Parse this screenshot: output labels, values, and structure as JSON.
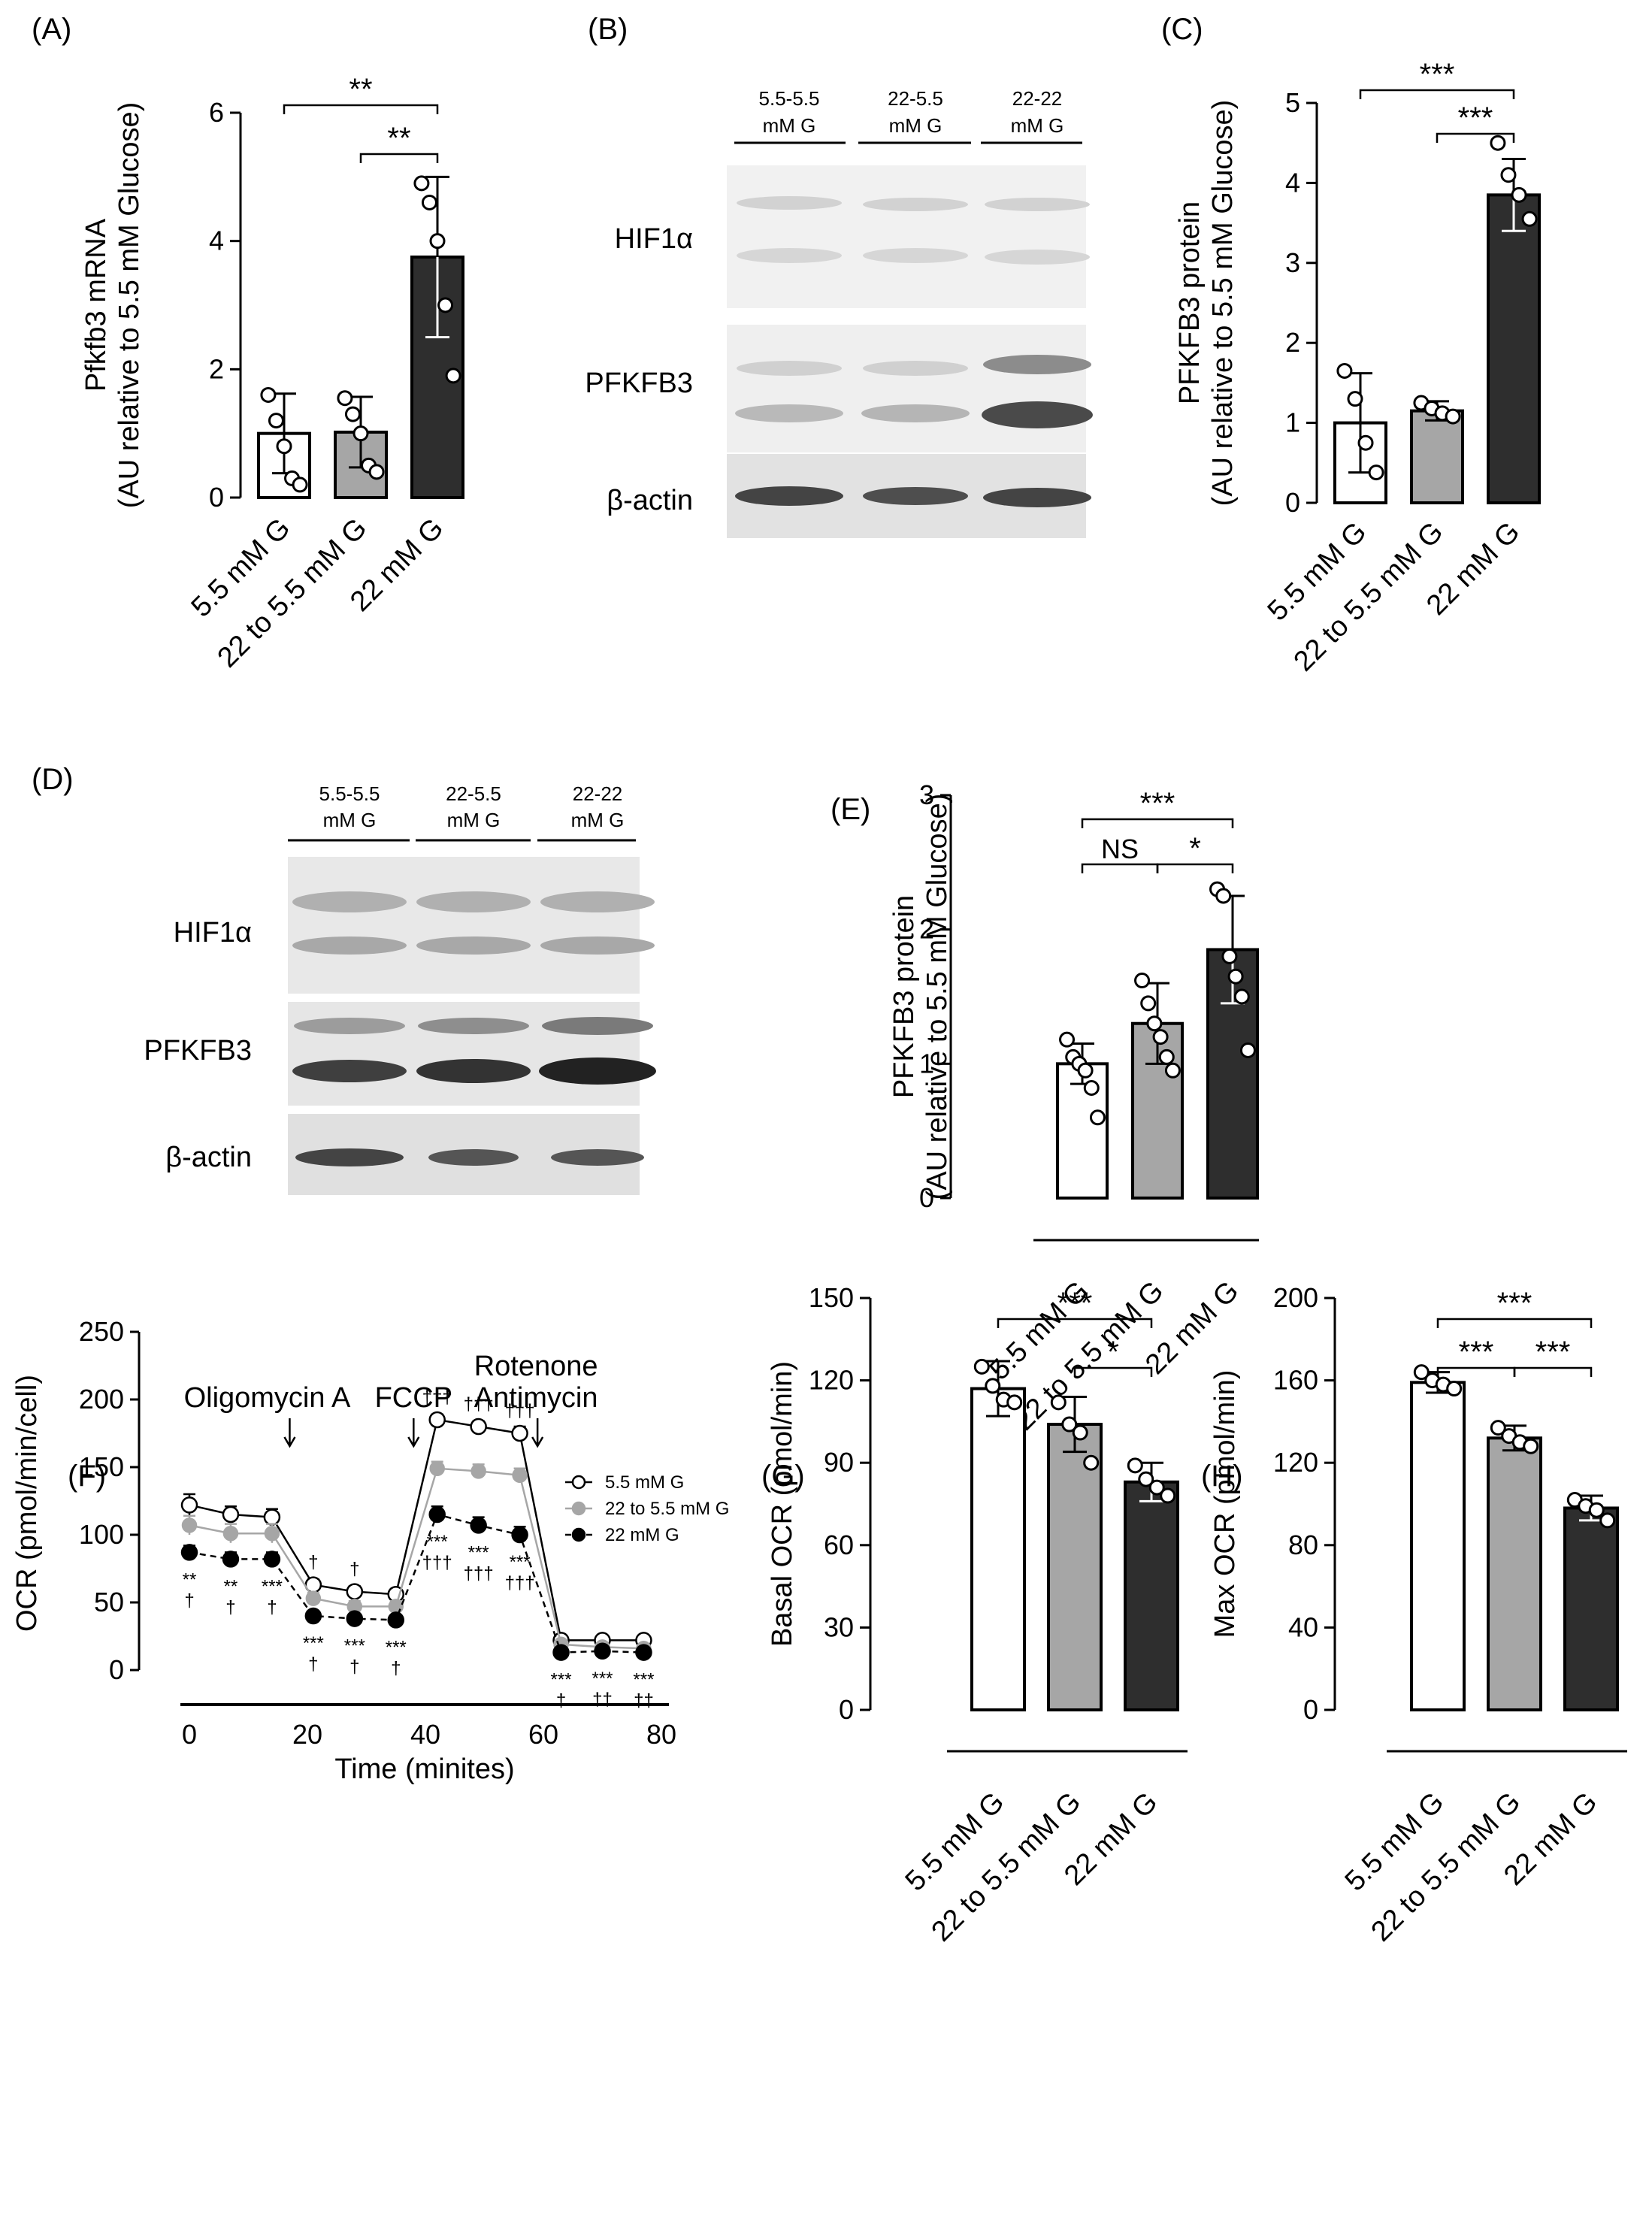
{
  "panels": {
    "A": "(A)",
    "B": "(B)",
    "C": "(C)",
    "D": "(D)",
    "E": "(E)",
    "F": "(F)",
    "G": "(G)",
    "H": "(H)"
  },
  "blots": {
    "lanes": [
      {
        "line1": "5.5-5.5",
        "line2": "mM G"
      },
      {
        "line1": "22-5.5",
        "line2": "mM G"
      },
      {
        "line1": "22-22",
        "line2": "mM G"
      }
    ],
    "rows": [
      "HIF1α",
      "PFKFB3",
      "β-actin"
    ]
  },
  "colors": {
    "white": "#ffffff",
    "gray": "#a6a6a6",
    "dark": "#2e2e2e"
  },
  "chart_data": [
    {
      "id": "A",
      "type": "bar",
      "ylabel_line1": "Pfkfb3 mRNA",
      "ylabel_line2": "(AU relative to 5.5 mM Glucose)",
      "categories": [
        "5.5 mM G",
        "22 to 5.5 mM G",
        "22 mM G"
      ],
      "values": [
        1.0,
        1.02,
        3.75
      ],
      "errors": [
        0.62,
        0.55,
        1.25
      ],
      "points": [
        [
          1.6,
          1.2,
          0.8,
          0.3,
          0.2
        ],
        [
          1.55,
          1.3,
          1.0,
          0.5,
          0.4
        ],
        [
          4.9,
          4.6,
          4.0,
          3.0,
          1.9
        ]
      ],
      "ylim": [
        0,
        6
      ],
      "yticks": [
        "0",
        "2",
        "4",
        "6"
      ],
      "brackets": [
        {
          "from": 0,
          "to": 2,
          "label": "**"
        },
        {
          "from": 1,
          "to": 2,
          "label": "**"
        }
      ]
    },
    {
      "id": "C",
      "type": "bar",
      "ylabel_line1": "PFKFB3 protein",
      "ylabel_line2": "(AU relative to 5.5 mM Glucose)",
      "categories": [
        "5.5 mM G",
        "22 to 5.5 mM G",
        "22 mM G"
      ],
      "values": [
        1.0,
        1.15,
        3.85
      ],
      "errors": [
        0.62,
        0.12,
        0.45
      ],
      "points": [
        [
          1.65,
          1.3,
          0.75,
          0.38
        ],
        [
          1.25,
          1.18,
          1.12,
          1.08
        ],
        [
          4.5,
          4.1,
          3.85,
          3.55
        ]
      ],
      "ylim": [
        0,
        5
      ],
      "yticks": [
        "0",
        "1",
        "2",
        "3",
        "4",
        "5"
      ],
      "brackets": [
        {
          "from": 0,
          "to": 2,
          "label": "***"
        },
        {
          "from": 1,
          "to": 2,
          "label": "***"
        }
      ]
    },
    {
      "id": "E",
      "type": "bar",
      "ylabel_line1": "PFKFB3 protein",
      "ylabel_line2": "(AU relative to 5.5 mM Glucose)",
      "categories": [
        "5.5 mM G",
        "22 to 5.5 mM G",
        "22 mM G"
      ],
      "values": [
        1.0,
        1.3,
        1.85
      ],
      "errors": [
        0.15,
        0.3,
        0.4
      ],
      "points": [
        [
          1.18,
          1.05,
          1.0,
          0.95,
          0.82,
          0.6
        ],
        [
          1.62,
          1.45,
          1.3,
          1.2,
          1.05,
          0.95
        ],
        [
          2.3,
          2.25,
          1.8,
          1.65,
          1.5,
          1.1
        ]
      ],
      "ylim": [
        0,
        3
      ],
      "yticks": [
        "0",
        "1",
        "2",
        "3"
      ],
      "brackets": [
        {
          "from": 0,
          "to": 2,
          "label": "***"
        },
        {
          "from": 0,
          "to": 1,
          "label": "NS"
        },
        {
          "from": 1,
          "to": 2,
          "label": "*"
        }
      ]
    },
    {
      "id": "F",
      "type": "line",
      "xlabel": "Time (minites)",
      "ylabel": "OCR (pmol/min/cell)",
      "xlim": [
        0,
        80
      ],
      "ylim": [
        0,
        250
      ],
      "xticks": [
        "0",
        "20",
        "40",
        "60",
        "80"
      ],
      "yticks": [
        "0",
        "50",
        "100",
        "150",
        "200",
        "250"
      ],
      "x": [
        0,
        7,
        14,
        21,
        28,
        35,
        42,
        49,
        56,
        63,
        70,
        77
      ],
      "series": [
        {
          "name": "5.5 mM G",
          "values": [
            122,
            115,
            113,
            63,
            58,
            56,
            185,
            180,
            175,
            22,
            22,
            22
          ],
          "errors": [
            8,
            6,
            6,
            4,
            4,
            4,
            4,
            4,
            5,
            3,
            3,
            3
          ]
        },
        {
          "name": "22 to 5.5 mM G",
          "values": [
            107,
            101,
            101,
            53,
            47,
            47,
            149,
            147,
            144,
            19,
            17,
            16
          ],
          "errors": [
            7,
            7,
            7,
            4,
            4,
            4,
            5,
            5,
            5,
            2,
            2,
            2
          ]
        },
        {
          "name": "22 mM G",
          "values": [
            87,
            82,
            82,
            40,
            38,
            37,
            115,
            107,
            100,
            13,
            14,
            13
          ],
          "errors": [
            5,
            5,
            5,
            3,
            3,
            3,
            6,
            6,
            6,
            2,
            2,
            2
          ]
        }
      ],
      "injections": [
        {
          "label": "Oligomycin A",
          "x": 17
        },
        {
          "label": "FCCP",
          "x": 38
        },
        {
          "label": "Rotenone",
          "label2": "Antimycin",
          "x": 59
        }
      ],
      "annotations": [
        {
          "x": 0,
          "sig": "**",
          "dag": "†"
        },
        {
          "x": 7,
          "sig": "**",
          "dag": "†"
        },
        {
          "x": 14,
          "sig": "***",
          "dag": "†"
        },
        {
          "x": 21,
          "sig": "***",
          "dag": "†",
          "top": "†"
        },
        {
          "x": 28,
          "sig": "***",
          "dag": "†",
          "top": "†"
        },
        {
          "x": 35,
          "sig": "***",
          "dag": "†"
        },
        {
          "x": 42,
          "sig": "***",
          "dag": "†††",
          "top": "†††"
        },
        {
          "x": 49,
          "sig": "***",
          "dag": "†††",
          "top": "†††"
        },
        {
          "x": 56,
          "sig": "***",
          "dag": "†††",
          "top": "†††"
        },
        {
          "x": 63,
          "sig": "***",
          "dag": "†"
        },
        {
          "x": 70,
          "sig": "***",
          "dag": "††"
        },
        {
          "x": 77,
          "sig": "***",
          "dag": "††"
        }
      ]
    },
    {
      "id": "G",
      "type": "bar",
      "ylabel": "Basal OCR (pmol/min)",
      "categories": [
        "5.5 mM G",
        "22 to 5.5 mM G",
        "22 mM G"
      ],
      "values": [
        117,
        104,
        83
      ],
      "errors": [
        10,
        10,
        7
      ],
      "points": [
        [
          125,
          118,
          113,
          112
        ],
        [
          112,
          104,
          101,
          90
        ],
        [
          89,
          84,
          81,
          78
        ]
      ],
      "ylim": [
        0,
        150
      ],
      "yticks": [
        "0",
        "30",
        "60",
        "90",
        "120",
        "150"
      ],
      "brackets": [
        {
          "from": 0,
          "to": 2,
          "label": "***"
        },
        {
          "from": 1,
          "to": 2,
          "label": "*"
        }
      ]
    },
    {
      "id": "H",
      "type": "bar",
      "ylabel": "Max OCR (pmol/min)",
      "categories": [
        "5.5 mM G",
        "22 to 5.5 mM G",
        "22 mM G"
      ],
      "values": [
        159,
        132,
        98
      ],
      "errors": [
        5,
        6,
        6
      ],
      "points": [
        [
          164,
          160,
          158,
          156
        ],
        [
          137,
          133,
          130,
          128
        ],
        [
          102,
          99,
          97,
          92
        ]
      ],
      "ylim": [
        0,
        200
      ],
      "yticks": [
        "0",
        "40",
        "80",
        "120",
        "160",
        "200"
      ],
      "brackets": [
        {
          "from": 0,
          "to": 2,
          "label": "***"
        },
        {
          "from": 0,
          "to": 1,
          "label": "***"
        },
        {
          "from": 1,
          "to": 2,
          "label": "***"
        }
      ]
    }
  ]
}
